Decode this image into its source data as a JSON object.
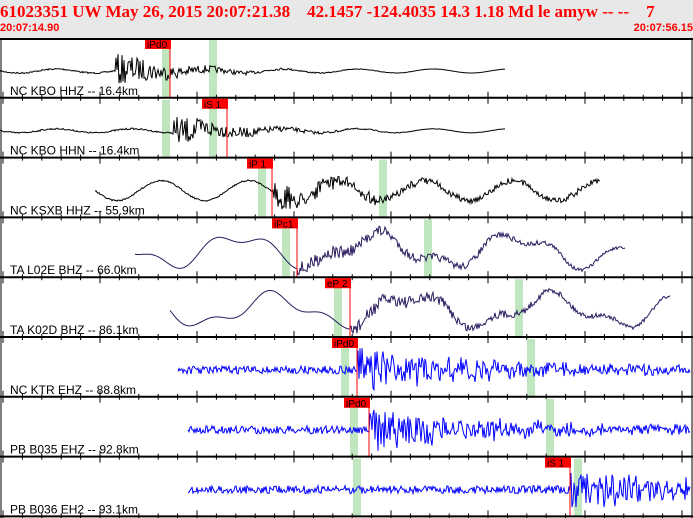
{
  "header": {
    "title": "61023351 UW May 26, 2015 20:07:21.38    42.1457 -124.4035 14.3 1.18 Md le amyw -- --    7",
    "start_time": "20:07:14.90",
    "end_time": "20:07:56.15"
  },
  "colors": {
    "header_text": "#ff0000",
    "pick": "#ff0000",
    "window": "#bfe6bf",
    "trace_broadband": "#2a1a5e",
    "trace_short": "#0000ff",
    "trace_hh": "#000000"
  },
  "traces": [
    {
      "label": "NC KBO HHZ -- 16.4km",
      "pick": "iPd0"
    },
    {
      "label": "NC KBO HHN -- 16.4km",
      "pick": "iS 1"
    },
    {
      "label": "NC KSXB HHZ -- 55.9km",
      "pick": "iP 1"
    },
    {
      "label": "TA L02E BHZ -- 66.0km",
      "pick": "iPc1"
    },
    {
      "label": "TA K02D BHZ -- 86.1km",
      "pick": "eP 2"
    },
    {
      "label": "NC KTR EHZ -- 88.8km",
      "pick": "iPd0"
    },
    {
      "label": "PB B035 EHZ -- 92.8km",
      "pick": "iPd0"
    },
    {
      "label": "PB B036 EH2 -- 93.1km",
      "pick": "iS 1"
    }
  ]
}
